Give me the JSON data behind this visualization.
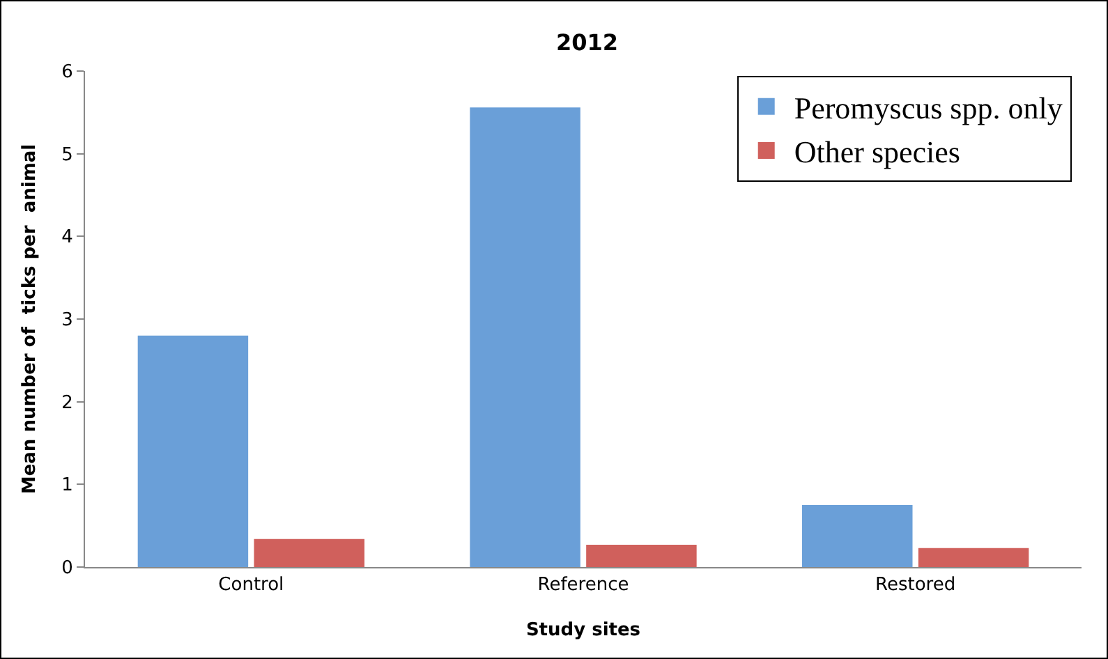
{
  "chart_data": {
    "type": "bar",
    "title": "2012",
    "xlabel": "Study sites",
    "ylabel": "Mean number of  ticks per  animal",
    "categories": [
      "Control",
      "Reference",
      "Restored"
    ],
    "series": [
      {
        "name": "Peromyscus spp. only",
        "color": "#6a9fd8",
        "values": [
          2.8,
          5.56,
          0.75
        ]
      },
      {
        "name": "Other species",
        "color": "#d0605c",
        "values": [
          0.34,
          0.27,
          0.23
        ]
      }
    ],
    "ylim": [
      0,
      6
    ],
    "yticks": [
      0,
      1,
      2,
      3,
      4,
      5,
      6
    ],
    "grid": false,
    "legend": "top right"
  }
}
